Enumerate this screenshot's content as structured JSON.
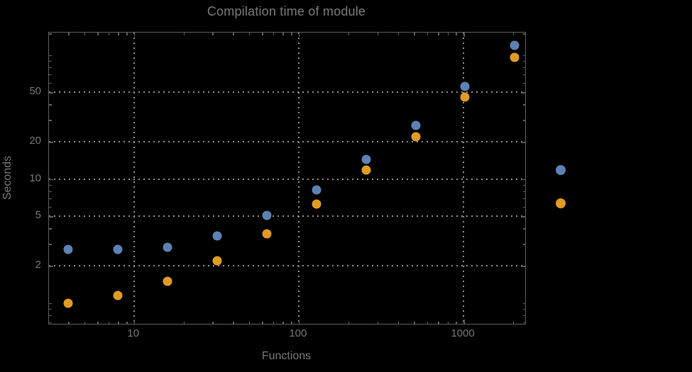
{
  "chart_data": {
    "type": "scatter",
    "title": "Compilation time of module",
    "xlabel": "Functions",
    "ylabel": "Seconds",
    "x_scale": "log",
    "y_scale": "log",
    "xlim": [
      3.05,
      2370
    ],
    "ylim": [
      0.68,
      152
    ],
    "grid": "dotted gray lines at major ticks",
    "legend_position": "right of frame, colored markers only (no visible label text)",
    "x": [
      4,
      8,
      16,
      32,
      64,
      128,
      256,
      512,
      1024,
      2048
    ],
    "series": [
      {
        "name": "series-1-blue",
        "color": "#5E81B5",
        "values": [
          2.7,
          2.7,
          2.8,
          3.5,
          5.1,
          8.2,
          14.4,
          27,
          56,
          120
        ]
      },
      {
        "name": "series-2-orange",
        "color": "#E19C24",
        "values": [
          1.0,
          1.15,
          1.5,
          2.2,
          3.6,
          6.3,
          11.9,
          22,
          46,
          96
        ]
      }
    ],
    "x_ticks": [
      10,
      100,
      1000
    ],
    "x_tick_labels": [
      "10",
      "100",
      "1000"
    ],
    "x_minor_ticks": [
      4,
      5,
      6,
      7,
      8,
      9,
      20,
      30,
      40,
      50,
      60,
      70,
      80,
      90,
      200,
      300,
      400,
      500,
      600,
      700,
      800,
      900,
      2000
    ],
    "y_ticks": [
      2,
      5,
      10,
      20,
      50
    ],
    "y_tick_labels": [
      "2",
      "5",
      "10",
      "20",
      "50"
    ],
    "y_minor_ticks": [
      0.7,
      0.8,
      0.9,
      1,
      3,
      4,
      6,
      7,
      8,
      9,
      30,
      40,
      60,
      70,
      80,
      90,
      100,
      150
    ]
  },
  "colors": {
    "background": "#000000",
    "frame": "#5d5d5d",
    "gridline": "#8a8a8a",
    "text": "#757575",
    "series_1": "#5E81B5",
    "series_2": "#E19C24"
  }
}
